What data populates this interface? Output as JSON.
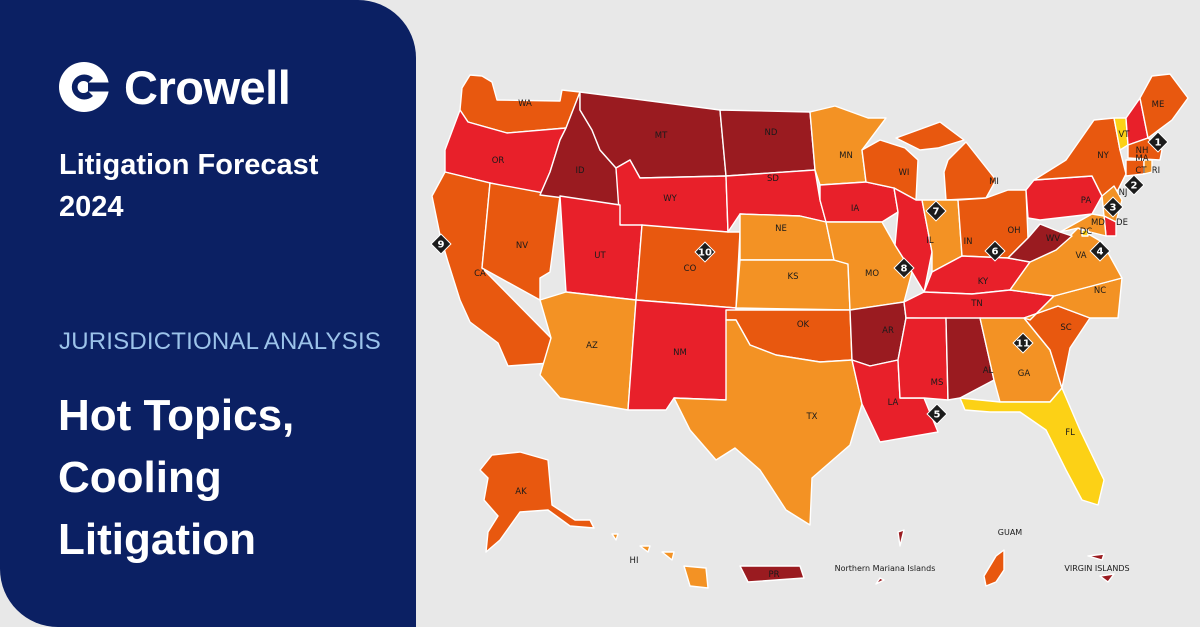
{
  "brand": {
    "name": "Crowell"
  },
  "forecast": {
    "line1": "Litigation Forecast",
    "line2": "2024"
  },
  "section_label": "JURISDICTIONAL ANALYSIS",
  "headline": {
    "line1": "Hot Topics,",
    "line2": "Cooling",
    "line3": "Litigation"
  },
  "colors": {
    "panel": "#0b2063",
    "accent_label": "#9cc3ea",
    "level_darkred": "#9a1b20",
    "level_red": "#e8202a",
    "level_darkorange": "#e8580f",
    "level_orange": "#f39224",
    "level_yellow": "#fcd116"
  },
  "map": {
    "states": {
      "WA": {
        "label": "WA",
        "level": "darkorange"
      },
      "OR": {
        "label": "OR",
        "level": "red"
      },
      "CA": {
        "label": "CA",
        "level": "darkorange"
      },
      "NV": {
        "label": "NV",
        "level": "darkorange"
      },
      "ID": {
        "label": "ID",
        "level": "darkred"
      },
      "MT": {
        "label": "MT",
        "level": "darkred"
      },
      "WY": {
        "label": "WY",
        "level": "red"
      },
      "UT": {
        "label": "UT",
        "level": "red"
      },
      "AZ": {
        "label": "AZ",
        "level": "orange"
      },
      "CO": {
        "label": "CO",
        "level": "darkorange"
      },
      "NM": {
        "label": "NM",
        "level": "red"
      },
      "ND": {
        "label": "ND",
        "level": "darkred"
      },
      "SD": {
        "label": "SD",
        "level": "red"
      },
      "NE": {
        "label": "NE",
        "level": "orange"
      },
      "KS": {
        "label": "KS",
        "level": "orange"
      },
      "OK": {
        "label": "OK",
        "level": "darkorange"
      },
      "TX": {
        "label": "TX",
        "level": "orange"
      },
      "MN": {
        "label": "MN",
        "level": "orange"
      },
      "IA": {
        "label": "IA",
        "level": "red"
      },
      "MO": {
        "label": "MO",
        "level": "orange"
      },
      "AR": {
        "label": "AR",
        "level": "darkred"
      },
      "LA": {
        "label": "LA",
        "level": "red"
      },
      "WI": {
        "label": "WI",
        "level": "darkorange"
      },
      "IL": {
        "label": "IL",
        "level": "red"
      },
      "MI": {
        "label": "MI",
        "level": "darkorange"
      },
      "IN": {
        "label": "IN",
        "level": "orange"
      },
      "OH": {
        "label": "OH",
        "level": "darkorange"
      },
      "KY": {
        "label": "KY",
        "level": "red"
      },
      "TN": {
        "label": "TN",
        "level": "red"
      },
      "MS": {
        "label": "MS",
        "level": "red"
      },
      "AL": {
        "label": "AL",
        "level": "darkred"
      },
      "GA": {
        "label": "GA",
        "level": "orange"
      },
      "FL": {
        "label": "FL",
        "level": "yellow"
      },
      "SC": {
        "label": "SC",
        "level": "darkorange"
      },
      "NC": {
        "label": "NC",
        "level": "orange"
      },
      "VA": {
        "label": "VA",
        "level": "orange"
      },
      "WV": {
        "label": "WV",
        "level": "darkred"
      },
      "PA": {
        "label": "PA",
        "level": "red"
      },
      "NY": {
        "label": "NY",
        "level": "darkorange"
      },
      "VT": {
        "label": "VT",
        "level": "yellow"
      },
      "NH": {
        "label": "NH",
        "level": "red"
      },
      "ME": {
        "label": "ME",
        "level": "darkorange"
      },
      "MA": {
        "label": "MA",
        "level": "darkorange"
      },
      "CT": {
        "label": "CT",
        "level": "darkorange"
      },
      "RI": {
        "label": "RI",
        "level": "orange"
      },
      "NJ": {
        "label": "NJ",
        "level": "orange"
      },
      "DE": {
        "label": "DE",
        "level": "red"
      },
      "MD": {
        "label": "MD",
        "level": "orange"
      },
      "DC": {
        "label": "DC",
        "level": "yellow"
      },
      "AK": {
        "label": "AK",
        "level": "darkorange"
      },
      "HI": {
        "label": "HI",
        "level": "orange"
      }
    },
    "territories": {
      "PR": {
        "label": "PR",
        "level": "darkred"
      },
      "MP": {
        "label": "Northern Mariana Islands",
        "level": "darkred"
      },
      "GU": {
        "label": "GUAM",
        "level": "darkorange"
      },
      "VI": {
        "label": "VIRGIN ISLANDS",
        "level": "darkred"
      }
    },
    "markers": [
      "1",
      "2",
      "3",
      "4",
      "5",
      "6",
      "7",
      "8",
      "9",
      "10",
      "11"
    ]
  }
}
